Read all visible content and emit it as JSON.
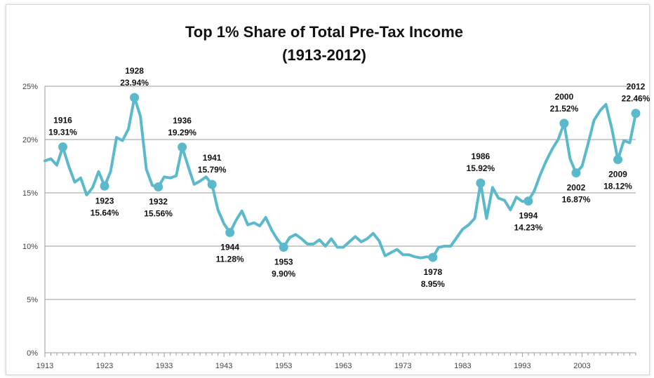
{
  "chart_data": {
    "type": "line",
    "title": "Top 1% Share of Total Pre-Tax Income",
    "subtitle": "(1913-2012)",
    "xlim": [
      1913,
      2012
    ],
    "ylim": [
      0,
      25
    ],
    "x_ticks": [
      {
        "value": 1913,
        "label": "1913"
      },
      {
        "value": 1923,
        "label": "1923"
      },
      {
        "value": 1933,
        "label": "1933"
      },
      {
        "value": 1943,
        "label": "1943"
      },
      {
        "value": 1953,
        "label": "1953"
      },
      {
        "value": 1963,
        "label": "1963"
      },
      {
        "value": 1973,
        "label": "1973"
      },
      {
        "value": 1983,
        "label": "1983"
      },
      {
        "value": 1993,
        "label": "1993"
      },
      {
        "value": 2003,
        "label": "2003"
      }
    ],
    "y_ticks": [
      {
        "value": 0,
        "label": "0%"
      },
      {
        "value": 5,
        "label": "5%"
      },
      {
        "value": 10,
        "label": "10%"
      },
      {
        "value": 15,
        "label": "15%"
      },
      {
        "value": 20,
        "label": "20%"
      },
      {
        "value": 25,
        "label": "25%"
      }
    ],
    "grid": true,
    "line_color": "#5bb9cc",
    "x": [
      1913,
      1914,
      1915,
      1916,
      1917,
      1918,
      1919,
      1920,
      1921,
      1922,
      1923,
      1924,
      1925,
      1926,
      1927,
      1928,
      1929,
      1930,
      1931,
      1932,
      1933,
      1934,
      1935,
      1936,
      1937,
      1938,
      1939,
      1940,
      1941,
      1942,
      1943,
      1944,
      1945,
      1946,
      1947,
      1948,
      1949,
      1950,
      1951,
      1952,
      1953,
      1954,
      1955,
      1956,
      1957,
      1958,
      1959,
      1960,
      1961,
      1962,
      1963,
      1964,
      1965,
      1966,
      1967,
      1968,
      1969,
      1970,
      1971,
      1972,
      1973,
      1974,
      1975,
      1976,
      1977,
      1978,
      1979,
      1980,
      1981,
      1982,
      1983,
      1984,
      1985,
      1986,
      1987,
      1988,
      1989,
      1990,
      1991,
      1992,
      1993,
      1994,
      1995,
      1996,
      1997,
      1998,
      1999,
      2000,
      2001,
      2002,
      2003,
      2004,
      2005,
      2006,
      2007,
      2008,
      2009,
      2010,
      2011,
      2012
    ],
    "values": [
      18.0,
      18.2,
      17.6,
      19.31,
      17.5,
      16.0,
      16.4,
      14.8,
      15.5,
      17.0,
      15.64,
      17.0,
      20.2,
      19.9,
      21.0,
      23.94,
      22.2,
      17.2,
      15.7,
      15.56,
      16.5,
      16.4,
      16.6,
      19.29,
      17.5,
      15.8,
      16.1,
      16.5,
      15.79,
      13.4,
      12.1,
      11.28,
      12.4,
      13.3,
      12.0,
      12.2,
      11.9,
      12.7,
      11.5,
      10.6,
      9.9,
      10.8,
      11.1,
      10.7,
      10.2,
      10.2,
      10.6,
      10.0,
      10.7,
      9.9,
      9.9,
      10.4,
      10.9,
      10.4,
      10.7,
      11.2,
      10.5,
      9.1,
      9.4,
      9.7,
      9.2,
      9.2,
      9.0,
      8.9,
      9.0,
      8.95,
      9.9,
      10.0,
      10.0,
      10.8,
      11.6,
      12.0,
      12.6,
      15.92,
      12.6,
      15.5,
      14.5,
      14.3,
      13.4,
      14.6,
      14.2,
      14.23,
      15.2,
      16.7,
      18.0,
      19.1,
      20.0,
      21.52,
      18.2,
      16.87,
      17.5,
      19.6,
      21.8,
      22.7,
      23.3,
      21.0,
      18.12,
      19.9,
      19.7,
      22.46
    ],
    "annotations": [
      {
        "x": 1916,
        "y": 19.31,
        "year": "1916",
        "value": "19.31%",
        "pos": "above"
      },
      {
        "x": 1923,
        "y": 15.64,
        "year": "1923",
        "value": "15.64%",
        "pos": "below"
      },
      {
        "x": 1928,
        "y": 23.94,
        "year": "1928",
        "value": "23.94%",
        "pos": "above"
      },
      {
        "x": 1932,
        "y": 15.56,
        "year": "1932",
        "value": "15.56%",
        "pos": "below"
      },
      {
        "x": 1936,
        "y": 19.29,
        "year": "1936",
        "value": "19.29%",
        "pos": "above"
      },
      {
        "x": 1941,
        "y": 15.79,
        "year": "1941",
        "value": "15.79%",
        "pos": "above"
      },
      {
        "x": 1944,
        "y": 11.28,
        "year": "1944",
        "value": "11.28%",
        "pos": "below"
      },
      {
        "x": 1953,
        "y": 9.9,
        "year": "1953",
        "value": "9.90%",
        "pos": "below"
      },
      {
        "x": 1978,
        "y": 8.95,
        "year": "1978",
        "value": "8.95%",
        "pos": "below"
      },
      {
        "x": 1986,
        "y": 15.92,
        "year": "1986",
        "value": "15.92%",
        "pos": "above"
      },
      {
        "x": 1994,
        "y": 14.23,
        "year": "1994",
        "value": "14.23%",
        "pos": "below"
      },
      {
        "x": 2000,
        "y": 21.52,
        "year": "2000",
        "value": "21.52%",
        "pos": "above"
      },
      {
        "x": 2002,
        "y": 16.87,
        "year": "2002",
        "value": "16.87%",
        "pos": "below"
      },
      {
        "x": 2009,
        "y": 18.12,
        "year": "2009",
        "value": "18.12%",
        "pos": "below"
      },
      {
        "x": 2012,
        "y": 22.46,
        "year": "2012",
        "value": "22.46%",
        "pos": "above"
      }
    ]
  }
}
